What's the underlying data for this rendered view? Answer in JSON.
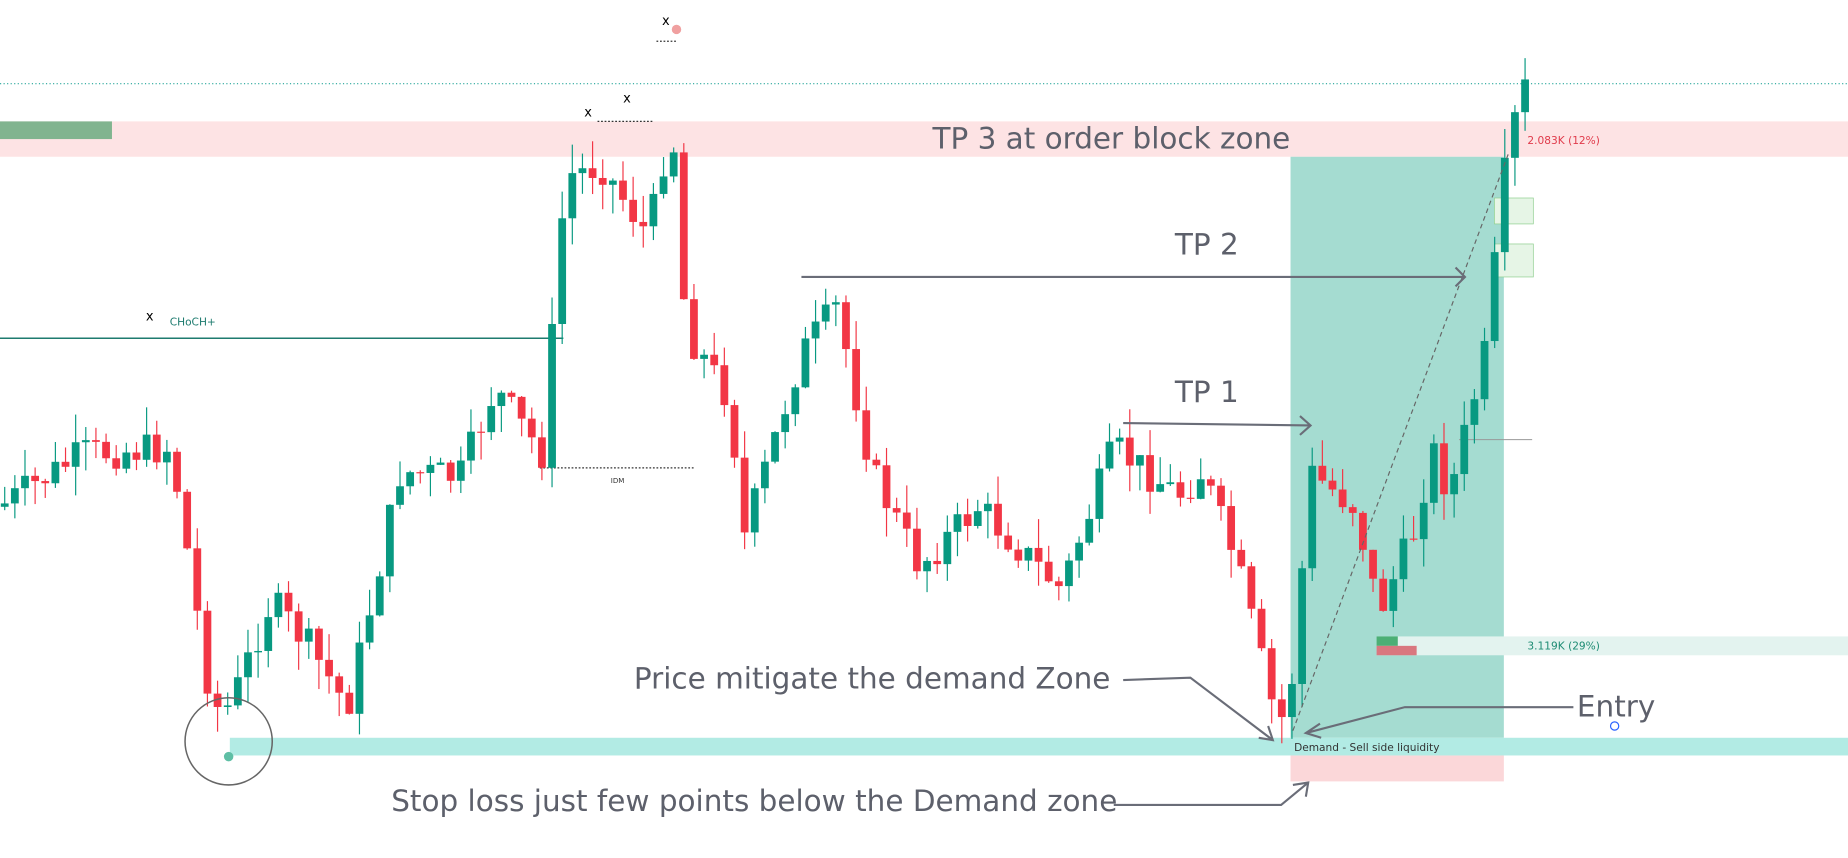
{
  "annotations": {
    "tp3": "TP 3 at order block zone",
    "tp2": "TP 2",
    "tp1": "TP 1",
    "mitigate": "Price mitigate the demand Zone",
    "entry": "Entry",
    "stop": "Stop loss just few points below the Demand zone"
  },
  "markers": {
    "choch": "CHoCH+",
    "idm": "IDM",
    "demand": "Demand  -  Sell side liquidity",
    "x": [
      "x",
      "x",
      "x",
      "x"
    ]
  },
  "position": {
    "target": "2.083K (12%)",
    "risk": "3.119K (29%)"
  }
}
